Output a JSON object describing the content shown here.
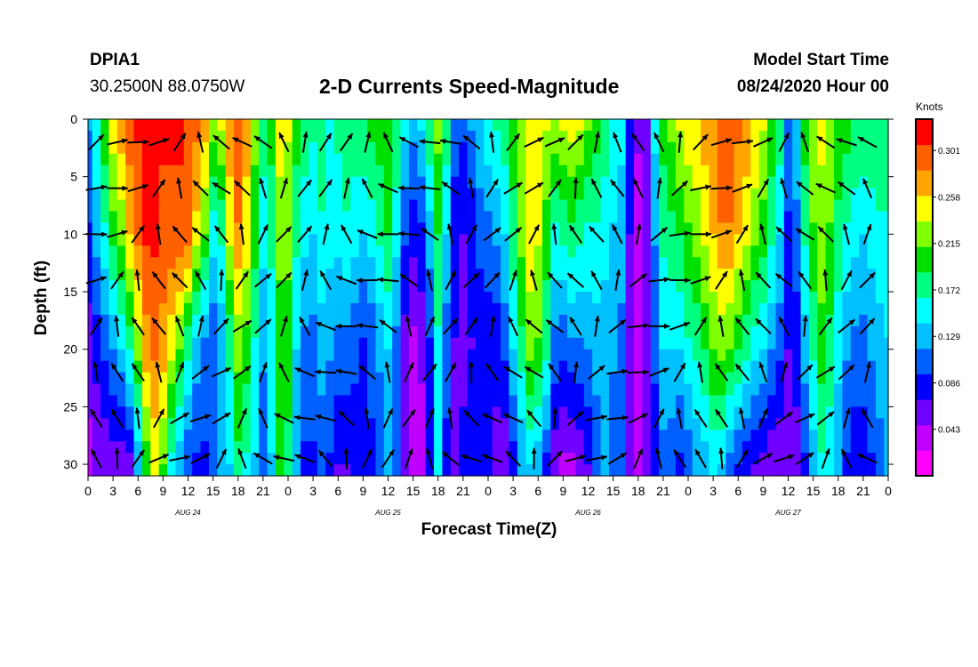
{
  "header": {
    "station": "DPIA1",
    "coordinates": "30.2500N 88.0750W",
    "title": "2-D Currents Speed-Magnitude",
    "model_start_label": "Model Start Time",
    "model_start_value": "08/24/2020 Hour 00"
  },
  "chart_data": {
    "type": "heatmap",
    "title": "2-D Currents Speed-Magnitude",
    "xlabel": "Forecast Time(Z)",
    "ylabel": "Depth (ft)",
    "x_hours_range": [
      0,
      96
    ],
    "ylim": [
      0,
      31
    ],
    "y_inverted": true,
    "x_tick_labels": [
      "0",
      "3",
      "6",
      "9",
      "12",
      "15",
      "18",
      "21",
      "0",
      "3",
      "6",
      "9",
      "12",
      "15",
      "18",
      "21",
      "0",
      "3",
      "6",
      "9",
      "12",
      "15",
      "18",
      "21",
      "0",
      "3",
      "6",
      "9",
      "12",
      "15",
      "18",
      "21",
      "0"
    ],
    "y_ticks": [
      0,
      5,
      10,
      15,
      20,
      25,
      30
    ],
    "day_labels": [
      "AUG 24",
      "AUG 25",
      "AUG 26",
      "AUG 27"
    ],
    "colorbar": {
      "unit": "Knots",
      "ticks": [
        "0.043",
        "0.086",
        "0.129",
        "0.172",
        "0.215",
        "0.258",
        "0.301"
      ],
      "range": [
        0.0,
        0.33
      ]
    },
    "speed_profiles": {
      "columns_hours": [
        0,
        1,
        2,
        3,
        4,
        5,
        6,
        7,
        8,
        9,
        10,
        11,
        12,
        13,
        14,
        15,
        16,
        17,
        18,
        19,
        20,
        21,
        22,
        23,
        24,
        25,
        26,
        27,
        28,
        29,
        30,
        31,
        32,
        33,
        34,
        35,
        36,
        37,
        38,
        39,
        40,
        41,
        42,
        43,
        44,
        45,
        46,
        47,
        48,
        49,
        50,
        51,
        52,
        53,
        54,
        55,
        56,
        57,
        58,
        59,
        60,
        61,
        62,
        63,
        64,
        65,
        66,
        67,
        68,
        69,
        70,
        71,
        72,
        73,
        74,
        75,
        76,
        77,
        78,
        79,
        80,
        81,
        82,
        83,
        84,
        85,
        86,
        87,
        88,
        89,
        90,
        91,
        92,
        93,
        94,
        95,
        96
      ],
      "depths_ft": [
        0,
        10,
        20,
        30
      ],
      "knots": [
        [
          0.12,
          0.09,
          0.06,
          0.04
        ],
        [
          0.16,
          0.13,
          0.08,
          0.05
        ],
        [
          0.21,
          0.16,
          0.1,
          0.05
        ],
        [
          0.25,
          0.2,
          0.12,
          0.06
        ],
        [
          0.28,
          0.22,
          0.14,
          0.05
        ],
        [
          0.3,
          0.26,
          0.17,
          0.06
        ],
        [
          0.31,
          0.29,
          0.22,
          0.12
        ],
        [
          0.31,
          0.31,
          0.27,
          0.2
        ],
        [
          0.31,
          0.31,
          0.29,
          0.24
        ],
        [
          0.31,
          0.3,
          0.27,
          0.21
        ],
        [
          0.31,
          0.3,
          0.24,
          0.16
        ],
        [
          0.31,
          0.3,
          0.21,
          0.12
        ],
        [
          0.3,
          0.29,
          0.17,
          0.1
        ],
        [
          0.29,
          0.25,
          0.13,
          0.09
        ],
        [
          0.27,
          0.21,
          0.11,
          0.09
        ],
        [
          0.23,
          0.15,
          0.1,
          0.1
        ],
        [
          0.24,
          0.17,
          0.12,
          0.12
        ],
        [
          0.28,
          0.24,
          0.17,
          0.14
        ],
        [
          0.3,
          0.28,
          0.22,
          0.18
        ],
        [
          0.27,
          0.25,
          0.2,
          0.16
        ],
        [
          0.22,
          0.2,
          0.16,
          0.14
        ],
        [
          0.18,
          0.15,
          0.12,
          0.11
        ],
        [
          0.2,
          0.17,
          0.15,
          0.14
        ],
        [
          0.25,
          0.22,
          0.2,
          0.19
        ],
        [
          0.24,
          0.22,
          0.2,
          0.18
        ],
        [
          0.2,
          0.17,
          0.14,
          0.12
        ],
        [
          0.18,
          0.15,
          0.11,
          0.09
        ],
        [
          0.17,
          0.14,
          0.11,
          0.09
        ],
        [
          0.18,
          0.16,
          0.13,
          0.1
        ],
        [
          0.16,
          0.15,
          0.12,
          0.09
        ],
        [
          0.17,
          0.15,
          0.11,
          0.07
        ],
        [
          0.18,
          0.16,
          0.11,
          0.07
        ],
        [
          0.18,
          0.15,
          0.1,
          0.08
        ],
        [
          0.19,
          0.14,
          0.09,
          0.08
        ],
        [
          0.2,
          0.15,
          0.1,
          0.09
        ],
        [
          0.2,
          0.17,
          0.12,
          0.11
        ],
        [
          0.21,
          0.19,
          0.14,
          0.13
        ],
        [
          0.19,
          0.15,
          0.11,
          0.1
        ],
        [
          0.15,
          0.1,
          0.06,
          0.05
        ],
        [
          0.13,
          0.08,
          0.04,
          0.03
        ],
        [
          0.15,
          0.09,
          0.05,
          0.04
        ],
        [
          0.19,
          0.13,
          0.09,
          0.08
        ],
        [
          0.22,
          0.19,
          0.16,
          0.15
        ],
        [
          0.18,
          0.14,
          0.1,
          0.09
        ],
        [
          0.11,
          0.08,
          0.07,
          0.07
        ],
        [
          0.1,
          0.07,
          0.06,
          0.08
        ],
        [
          0.12,
          0.08,
          0.07,
          0.09
        ],
        [
          0.14,
          0.1,
          0.08,
          0.09
        ],
        [
          0.16,
          0.11,
          0.08,
          0.08
        ],
        [
          0.17,
          0.12,
          0.08,
          0.06
        ],
        [
          0.18,
          0.14,
          0.1,
          0.05
        ],
        [
          0.2,
          0.18,
          0.14,
          0.08
        ],
        [
          0.22,
          0.22,
          0.18,
          0.12
        ],
        [
          0.24,
          0.25,
          0.22,
          0.14
        ],
        [
          0.25,
          0.24,
          0.21,
          0.12
        ],
        [
          0.24,
          0.2,
          0.17,
          0.09
        ],
        [
          0.23,
          0.16,
          0.11,
          0.05
        ],
        [
          0.24,
          0.17,
          0.1,
          0.04
        ],
        [
          0.25,
          0.18,
          0.11,
          0.04
        ],
        [
          0.24,
          0.17,
          0.11,
          0.05
        ],
        [
          0.22,
          0.16,
          0.12,
          0.07
        ],
        [
          0.2,
          0.16,
          0.13,
          0.1
        ],
        [
          0.18,
          0.15,
          0.13,
          0.12
        ],
        [
          0.16,
          0.14,
          0.12,
          0.11
        ],
        [
          0.15,
          0.13,
          0.11,
          0.1
        ],
        [
          0.09,
          0.07,
          0.06,
          0.06
        ],
        [
          0.05,
          0.04,
          0.04,
          0.04
        ],
        [
          0.06,
          0.05,
          0.05,
          0.05
        ],
        [
          0.15,
          0.12,
          0.1,
          0.08
        ],
        [
          0.2,
          0.17,
          0.14,
          0.11
        ],
        [
          0.22,
          0.18,
          0.14,
          0.1
        ],
        [
          0.24,
          0.19,
          0.14,
          0.09
        ],
        [
          0.25,
          0.21,
          0.16,
          0.1
        ],
        [
          0.26,
          0.22,
          0.17,
          0.12
        ],
        [
          0.27,
          0.24,
          0.19,
          0.13
        ],
        [
          0.28,
          0.26,
          0.21,
          0.15
        ],
        [
          0.3,
          0.28,
          0.22,
          0.14
        ],
        [
          0.3,
          0.28,
          0.21,
          0.11
        ],
        [
          0.29,
          0.26,
          0.19,
          0.09
        ],
        [
          0.28,
          0.24,
          0.17,
          0.08
        ],
        [
          0.26,
          0.22,
          0.15,
          0.07
        ],
        [
          0.24,
          0.2,
          0.14,
          0.06
        ],
        [
          0.21,
          0.17,
          0.12,
          0.05
        ],
        [
          0.18,
          0.14,
          0.1,
          0.05
        ],
        [
          0.11,
          0.09,
          0.07,
          0.05
        ],
        [
          0.14,
          0.11,
          0.08,
          0.06
        ],
        [
          0.2,
          0.17,
          0.13,
          0.09
        ],
        [
          0.23,
          0.21,
          0.17,
          0.13
        ],
        [
          0.24,
          0.23,
          0.2,
          0.16
        ],
        [
          0.23,
          0.21,
          0.18,
          0.15
        ],
        [
          0.21,
          0.18,
          0.15,
          0.12
        ],
        [
          0.2,
          0.16,
          0.12,
          0.09
        ],
        [
          0.19,
          0.15,
          0.11,
          0.08
        ],
        [
          0.19,
          0.14,
          0.11,
          0.08
        ],
        [
          0.19,
          0.15,
          0.12,
          0.09
        ],
        [
          0.19,
          0.16,
          0.13,
          0.11
        ],
        [
          0.19,
          0.16,
          0.14,
          0.12
        ]
      ]
    }
  },
  "colors": {
    "palette": [
      "#ff00ff",
      "#c000ff",
      "#7000ff",
      "#0000ff",
      "#0060ff",
      "#00c0ff",
      "#00ffff",
      "#00ff80",
      "#00e000",
      "#80ff00",
      "#ffff00",
      "#ffa500",
      "#ff6000",
      "#ff0000"
    ]
  }
}
